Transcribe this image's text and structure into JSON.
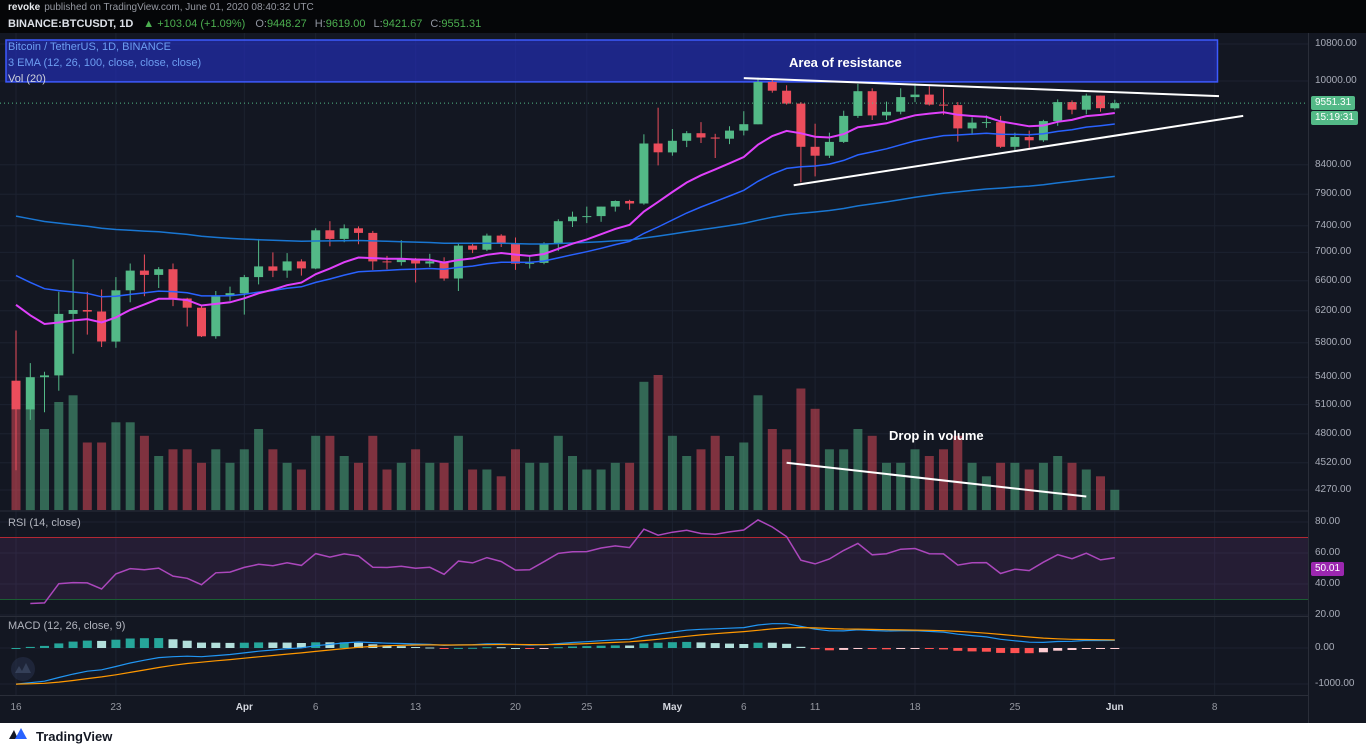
{
  "attribution": {
    "author": "revoke",
    "text": "published on TradingView.com, June 01, 2020 08:40:32 UTC"
  },
  "symbol_bar": {
    "symbol": "BINANCE:BTCUSDT, 1D",
    "up_arrow": "▲",
    "change": "+103.04 (+1.09%)",
    "ohlc": [
      {
        "label": "O:",
        "value": "9448.27"
      },
      {
        "label": "H:",
        "value": "9619.00"
      },
      {
        "label": "L:",
        "value": "9421.67"
      },
      {
        "label": "C:",
        "value": "9551.31"
      }
    ]
  },
  "legend": {
    "title": "Bitcoin / TetherUS, 1D, BINANCE",
    "ema": "3 EMA (12, 26, 100, close, close, close)",
    "vol": "Vol (20)"
  },
  "panes": {
    "rsi_label": "RSI (14, close)",
    "macd_label": "MACD (12, 26, close, 9)"
  },
  "axis": {
    "price_labels": [
      10800,
      10000,
      8400,
      7900,
      7400,
      7000,
      6600,
      6200,
      5800,
      5400,
      5100,
      4800,
      4520,
      4270
    ],
    "price_badge": "9551.31",
    "countdown_badge": "15:19:31",
    "rsi_labels": [
      80,
      60,
      40,
      20
    ],
    "rsi_badge": "50.01",
    "macd_levels": [
      0,
      -1000
    ],
    "time_ticks": [
      {
        "day": 0,
        "label": "16"
      },
      {
        "day": 7,
        "label": "23"
      },
      {
        "day": 16,
        "label": "Apr",
        "month": true
      },
      {
        "day": 21,
        "label": "6"
      },
      {
        "day": 28,
        "label": "13"
      },
      {
        "day": 35,
        "label": "20"
      },
      {
        "day": 40,
        "label": "25"
      },
      {
        "day": 46,
        "label": "May",
        "month": true
      },
      {
        "day": 51,
        "label": "6"
      },
      {
        "day": 56,
        "label": "11"
      },
      {
        "day": 63,
        "label": "18"
      },
      {
        "day": 70,
        "label": "25"
      },
      {
        "day": 77,
        "label": "Jun",
        "month": true
      },
      {
        "day": 84,
        "label": "8"
      }
    ]
  },
  "footer": {
    "brand": "TradingView"
  },
  "colors": {
    "up": "#53b987",
    "down": "#eb4d5c",
    "vol_up": "#53b98780",
    "vol_down": "#eb4d5c80",
    "ema12": "#e040fb",
    "ema26": "#2962ff",
    "ema100": "#1976d2",
    "grid": "#1c2230",
    "divider": "#2a2e39",
    "box_fill": "#242ebea6",
    "box_stroke": "#3d5afe",
    "rsi": "#ab47bc",
    "rsi_band": "#ab47bc1f",
    "rsi_upper": "#b22833",
    "rsi_lower": "#1b5e33",
    "macd": "#2196f3",
    "signal": "#ff9800",
    "hist_up": "#26a69a",
    "hist_up_weak": "#b2dfdb",
    "hist_dn": "#ff5252",
    "hist_dn_weak": "#ffcdd2",
    "badge_green": "#53b987",
    "badge_purple": "#9c27b0",
    "trendline": "#ffffff"
  },
  "chart_data": {
    "type": "candlestick",
    "symbol": "BINANCE:BTCUSDT",
    "timeframe": "1D",
    "scale": "log",
    "ylim": [
      4270,
      10800
    ],
    "last_price": 9551.31,
    "dates": [
      "Mar 16",
      "Mar 17",
      "Mar 18",
      "Mar 19",
      "Mar 20",
      "Mar 21",
      "Mar 22",
      "Mar 23",
      "Mar 24",
      "Mar 25",
      "Mar 26",
      "Mar 27",
      "Mar 28",
      "Mar 29",
      "Mar 30",
      "Mar 31",
      "Apr 1",
      "Apr 2",
      "Apr 3",
      "Apr 4",
      "Apr 5",
      "Apr 6",
      "Apr 7",
      "Apr 8",
      "Apr 9",
      "Apr 10",
      "Apr 11",
      "Apr 12",
      "Apr 13",
      "Apr 14",
      "Apr 15",
      "Apr 16",
      "Apr 17",
      "Apr 18",
      "Apr 19",
      "Apr 20",
      "Apr 21",
      "Apr 22",
      "Apr 23",
      "Apr 24",
      "Apr 25",
      "Apr 26",
      "Apr 27",
      "Apr 28",
      "Apr 29",
      "Apr 30",
      "May 1",
      "May 2",
      "May 3",
      "May 4",
      "May 5",
      "May 6",
      "May 7",
      "May 8",
      "May 9",
      "May 10",
      "May 11",
      "May 12",
      "May 13",
      "May 14",
      "May 15",
      "May 16",
      "May 17",
      "May 18",
      "May 19",
      "May 20",
      "May 21",
      "May 22",
      "May 23",
      "May 24",
      "May 25",
      "May 26",
      "May 27",
      "May 28",
      "May 29",
      "May 30",
      "May 31",
      "Jun 1"
    ],
    "open": [
      5360,
      5050,
      5400,
      5420,
      6160,
      6210,
      6190,
      5815,
      6470,
      6740,
      6680,
      6760,
      6360,
      6240,
      5880,
      6400,
      6430,
      6650,
      6800,
      6740,
      6870,
      6770,
      7330,
      7200,
      7360,
      7290,
      6870,
      6860,
      6910,
      6840,
      6870,
      6630,
      7100,
      7040,
      7250,
      7130,
      6840,
      6850,
      7130,
      7470,
      7540,
      7550,
      7700,
      7790,
      7750,
      8780,
      8620,
      8830,
      8970,
      8890,
      8870,
      9020,
      9140,
      9980,
      9800,
      9540,
      8720,
      8560,
      8810,
      9300,
      9790,
      9310,
      9380,
      9670,
      9720,
      9520,
      9510,
      9060,
      9170,
      9180,
      8720,
      8900,
      8840,
      9200,
      9570,
      9420,
      9700,
      9448.27
    ],
    "high": [
      5950,
      5560,
      5460,
      6450,
      6900,
      6450,
      6480,
      6650,
      6840,
      6970,
      6790,
      6840,
      6370,
      6280,
      6460,
      6520,
      6680,
      7200,
      7000,
      6990,
      6900,
      7360,
      7470,
      7420,
      7390,
      7320,
      6950,
      7180,
      6920,
      6980,
      6930,
      7130,
      7140,
      7280,
      7270,
      7220,
      6940,
      7150,
      7500,
      7620,
      7700,
      7700,
      7800,
      7810,
      8950,
      9460,
      9050,
      9010,
      9180,
      8960,
      9100,
      9390,
      10070,
      10050,
      9910,
      9570,
      9150,
      8980,
      9400,
      9940,
      9850,
      9580,
      9850,
      9950,
      9890,
      9840,
      9570,
      9270,
      9310,
      9300,
      8980,
      9020,
      9225,
      9625,
      9605,
      9740,
      9700,
      9619
    ],
    "low": [
      4450,
      4940,
      5020,
      5250,
      5670,
      5900,
      5750,
      5740,
      6310,
      6390,
      6500,
      6260,
      6000,
      5870,
      5850,
      6330,
      6150,
      6550,
      6650,
      6640,
      6670,
      6760,
      7090,
      7150,
      7120,
      6750,
      6760,
      6810,
      6575,
      6790,
      6600,
      6460,
      6990,
      7020,
      7080,
      6750,
      6770,
      6830,
      7020,
      7380,
      7440,
      7460,
      7620,
      7650,
      7730,
      8390,
      8560,
      8715,
      8790,
      8520,
      8770,
      8930,
      9140,
      9760,
      9520,
      8100,
      8200,
      8520,
      8790,
      9260,
      9220,
      9220,
      9330,
      9570,
      9500,
      9320,
      8815,
      8940,
      9070,
      8700,
      8640,
      8700,
      8810,
      9110,
      9330,
      9330,
      9380,
      9421.67
    ],
    "close": [
      5050,
      5400,
      5420,
      6160,
      6210,
      6190,
      5815,
      6470,
      6740,
      6680,
      6760,
      6360,
      6240,
      5880,
      6400,
      6430,
      6650,
      6800,
      6740,
      6870,
      6770,
      7330,
      7200,
      7360,
      7290,
      6870,
      6860,
      6910,
      6840,
      6870,
      6630,
      7100,
      7040,
      7250,
      7130,
      6840,
      6850,
      7130,
      7470,
      7540,
      7550,
      7700,
      7790,
      7750,
      8780,
      8620,
      8830,
      8970,
      8890,
      8870,
      9020,
      9140,
      9980,
      9800,
      9540,
      8720,
      8560,
      8810,
      9300,
      9790,
      9310,
      9380,
      9670,
      9720,
      9520,
      9510,
      9060,
      9170,
      9180,
      8720,
      8900,
      8840,
      9200,
      9570,
      9420,
      9700,
      9450,
      9551.31
    ],
    "volume": [
      190,
      150,
      120,
      160,
      170,
      100,
      100,
      130,
      130,
      110,
      80,
      90,
      90,
      70,
      90,
      70,
      90,
      120,
      90,
      70,
      60,
      110,
      110,
      80,
      70,
      110,
      60,
      70,
      90,
      70,
      70,
      110,
      60,
      60,
      50,
      90,
      70,
      70,
      110,
      80,
      60,
      60,
      70,
      70,
      190,
      200,
      110,
      80,
      90,
      110,
      80,
      100,
      170,
      120,
      90,
      180,
      150,
      90,
      90,
      120,
      110,
      70,
      70,
      90,
      80,
      90,
      110,
      70,
      50,
      70,
      70,
      60,
      70,
      80,
      70,
      60,
      50,
      30
    ],
    "indicators": {
      "ema_periods": [
        12,
        26,
        100
      ],
      "rsi_period": 14,
      "rsi_last": 50.01,
      "macd_params": [
        12,
        26,
        9
      ],
      "vol_ma": 20
    },
    "annotations": {
      "resistance_box": {
        "label": "Area of resistance",
        "day1": -0.7,
        "price1": 10890,
        "day2": 84.2,
        "price2": 9980
      },
      "trendlines": [
        {
          "day1": 51,
          "price1": 10060,
          "day2": 84.3,
          "price2": 9690
        },
        {
          "day1": 54.5,
          "price1": 8050,
          "day2": 86,
          "price2": 9300
        }
      ],
      "volume_trendline": {
        "day1": 54,
        "vol1": 70,
        "day2": 75,
        "vol2": 20
      },
      "volume_label": {
        "text": "Drop in volume",
        "day": 64.5,
        "vol": 112
      }
    }
  }
}
